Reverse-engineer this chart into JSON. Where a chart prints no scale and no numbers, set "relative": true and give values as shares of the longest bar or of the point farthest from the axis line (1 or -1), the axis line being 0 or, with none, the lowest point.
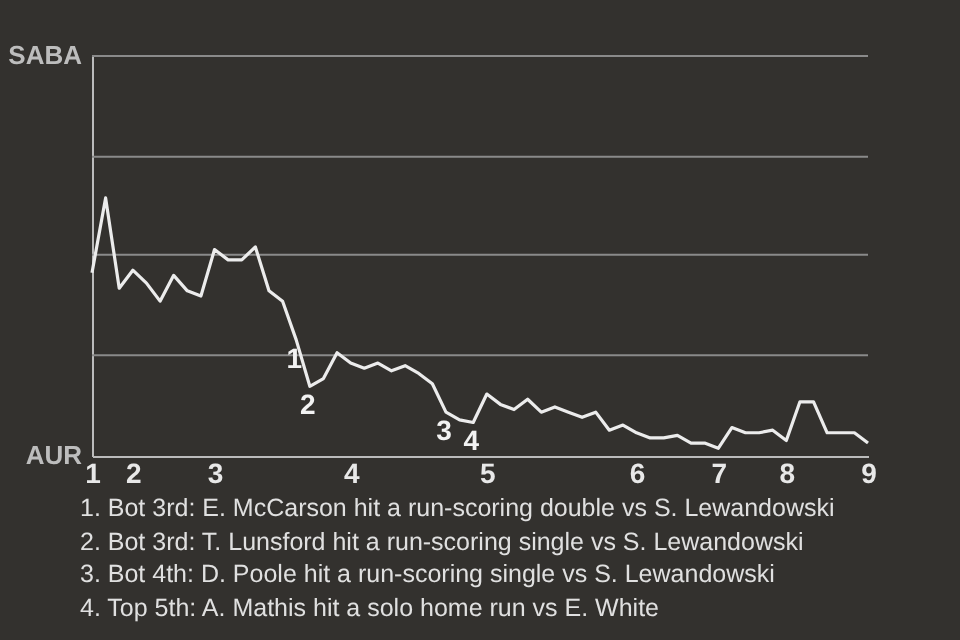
{
  "chart_data": {
    "type": "line",
    "relative": true,
    "categories": [
      "1",
      null,
      null,
      "2",
      null,
      null,
      null,
      null,
      null,
      "3",
      null,
      null,
      null,
      null,
      null,
      null,
      null,
      null,
      null,
      "4",
      null,
      null,
      null,
      null,
      null,
      null,
      null,
      null,
      null,
      "5",
      null,
      null,
      null,
      null,
      null,
      null,
      null,
      null,
      null,
      null,
      "6",
      null,
      null,
      null,
      null,
      null,
      "7",
      null,
      null,
      null,
      null,
      "8",
      null,
      null,
      null,
      null,
      null,
      "9"
    ],
    "series": [
      {
        "color": "#ececec",
        "values": [
          0.71,
          1,
          0.65,
          0.72,
          0.67,
          0.6,
          0.7,
          0.64,
          0.62,
          0.8,
          0.76,
          0.76,
          0.81,
          0.64,
          0.6,
          0.45,
          0.27,
          0.3,
          0.4,
          0.36,
          0.34,
          0.36,
          0.33,
          0.35,
          0.32,
          0.28,
          0.17,
          0.14,
          0.13,
          0.24,
          0.2,
          0.18,
          0.22,
          0.17,
          0.19,
          0.17,
          0.15,
          0.17,
          0.1,
          0.12,
          0.09,
          0.07,
          0.07,
          0.08,
          0.05,
          0.05,
          0.03,
          0.11,
          0.09,
          0.09,
          0.1,
          0.06,
          0.21,
          0.21,
          0.09,
          0.09,
          0.09,
          0.05
        ]
      }
    ],
    "ref_lines": [
      {
        "axis": "y",
        "value": 0.39,
        "color": "#8a8a8a"
      },
      {
        "axis": "y",
        "value": 0.78,
        "color": "#8a8a8a"
      },
      {
        "axis": "y",
        "value": 1.16,
        "color": "#8a8a8a"
      },
      {
        "axis": "y",
        "value": 1.55,
        "color": "#8a8a8a"
      }
    ],
    "annotations": [
      {
        "text": "1",
        "y": 0.45
      },
      {
        "text": "2",
        "y": 0.27
      },
      {
        "text": "3",
        "y": 0.17
      },
      {
        "text": "4",
        "y": 0.13
      },
      "SABA",
      "AUR",
      "1. Bot 3rd: E. McCarson hit a run-scoring double vs S. Lewandowski",
      "2. Bot 3rd: T. Lunsford hit a run-scoring single vs S. Lewandowski",
      "3. Bot 4th: D. Poole hit a run-scoring single vs S. Lewandowski",
      "4. Top 5th: A. Mathis hit a solo home run vs E. White"
    ]
  }
}
